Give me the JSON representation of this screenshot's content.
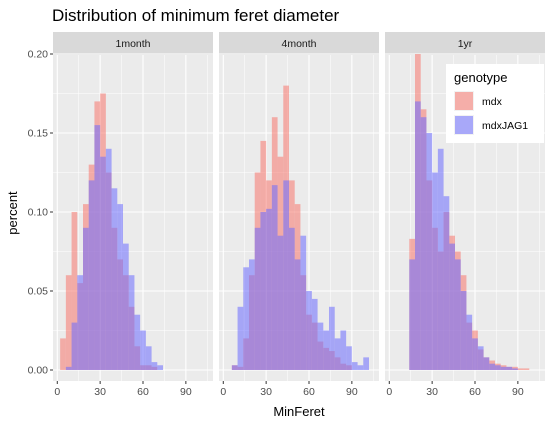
{
  "chart_data": {
    "type": "histogram",
    "title": "Distribution of minimum feret diameter",
    "xlabel": "MinFeret",
    "ylabel": "percent",
    "ylim": [
      0,
      0.2
    ],
    "yticks": [
      "0.00",
      "0.05",
      "0.10",
      "0.15",
      "0.20"
    ],
    "xticks": [
      "0",
      "30",
      "60",
      "90"
    ],
    "xlim": [
      -3,
      109
    ],
    "bin_width": 4,
    "grid": true,
    "legend": {
      "title": "genotype",
      "placement": "top-right",
      "entries": [
        "mdx",
        "mdxJAG1"
      ]
    },
    "colors": {
      "mdx": "#F8766D",
      "mdxJAG1": "#6B6BFF",
      "overlap": "#B87DC5"
    },
    "facets": [
      {
        "label": "1month",
        "series": [
          {
            "name": "mdx",
            "bin_starts": [
              2,
              6,
              10,
              14,
              18,
              22,
              26,
              30,
              34,
              38,
              42,
              46,
              50,
              54,
              58,
              62,
              66
            ],
            "values": [
              0.02,
              0.06,
              0.1,
              0.055,
              0.105,
              0.13,
              0.17,
              0.175,
              0.125,
              0.09,
              0.07,
              0.06,
              0.04,
              0.015,
              0.003,
              0.003,
              0.002
            ]
          },
          {
            "name": "mdxJAG1",
            "bin_starts": [
              6,
              10,
              14,
              18,
              22,
              26,
              30,
              34,
              38,
              42,
              46,
              50,
              54,
              58,
              62,
              66,
              70
            ],
            "values": [
              0.002,
              0.03,
              0.06,
              0.09,
              0.12,
              0.155,
              0.135,
              0.14,
              0.115,
              0.105,
              0.08,
              0.06,
              0.035,
              0.025,
              0.015,
              0.005,
              0.003
            ]
          }
        ]
      },
      {
        "label": "4month",
        "series": [
          {
            "name": "mdx",
            "bin_starts": [
              6,
              10,
              14,
              18,
              22,
              26,
              30,
              34,
              38,
              42,
              46,
              50,
              54,
              58,
              62,
              66,
              70,
              74,
              78,
              82,
              86
            ],
            "values": [
              0.003,
              0.002,
              0.02,
              0.06,
              0.125,
              0.145,
              0.12,
              0.16,
              0.135,
              0.18,
              0.12,
              0.105,
              0.06,
              0.035,
              0.03,
              0.018,
              0.014,
              0.012,
              0.008,
              0.004,
              0.003
            ]
          },
          {
            "name": "mdxJAG1",
            "bin_starts": [
              6,
              10,
              14,
              18,
              22,
              26,
              30,
              34,
              38,
              42,
              46,
              50,
              54,
              58,
              62,
              66,
              70,
              74,
              78,
              82,
              86,
              90,
              94,
              98
            ],
            "values": [
              0.003,
              0.04,
              0.065,
              0.07,
              0.09,
              0.1,
              0.102,
              0.117,
              0.085,
              0.12,
              0.09,
              0.07,
              0.085,
              0.05,
              0.045,
              0.03,
              0.025,
              0.04,
              0.02,
              0.025,
              0.015,
              0.005,
              0.003,
              0.008
            ]
          }
        ]
      },
      {
        "label": "1yr",
        "series": [
          {
            "name": "mdx",
            "bin_starts": [
              14,
              18,
              22,
              26,
              30,
              34,
              38,
              42,
              46,
              50,
              54,
              58,
              62,
              66,
              70,
              74,
              78,
              82,
              86,
              90,
              94
            ],
            "values": [
              0.083,
              0.2,
              0.165,
              0.12,
              0.09,
              0.075,
              0.1,
              0.085,
              0.075,
              0.06,
              0.03,
              0.025,
              0.013,
              0.008,
              0.006,
              0.004,
              0.003,
              0.002,
              0.002,
              0.001,
              0.001
            ]
          },
          {
            "name": "mdxJAG1",
            "bin_starts": [
              14,
              18,
              22,
              26,
              30,
              34,
              38,
              42,
              46,
              50,
              54,
              58,
              62,
              66,
              70,
              74,
              78,
              82,
              86
            ],
            "values": [
              0.07,
              0.17,
              0.16,
              0.15,
              0.125,
              0.14,
              0.11,
              0.08,
              0.07,
              0.05,
              0.035,
              0.02,
              0.015,
              0.008,
              0.004,
              0.003,
              0.002,
              0.002,
              0.001
            ]
          }
        ]
      }
    ]
  }
}
